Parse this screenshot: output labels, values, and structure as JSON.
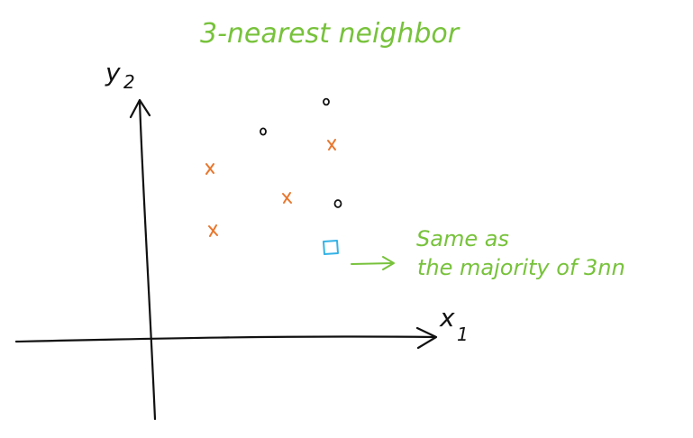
{
  "title": "3-nearest neighbor",
  "axes": {
    "x_label": "x",
    "x_subscript": "1",
    "y_label": "y",
    "y_subscript": "2"
  },
  "annotation": {
    "line1": "Same as",
    "line2": "the majority of 3nn"
  },
  "points": {
    "class_o": {
      "marker": "o",
      "color": "#111111",
      "count": 3
    },
    "class_x": {
      "marker": "x",
      "color": "#e8772e",
      "count": 4
    },
    "query": {
      "marker": "square",
      "color": "#33b3e6",
      "count": 1
    }
  },
  "colors": {
    "annotation": "#77c23b",
    "axis": "#111111"
  }
}
